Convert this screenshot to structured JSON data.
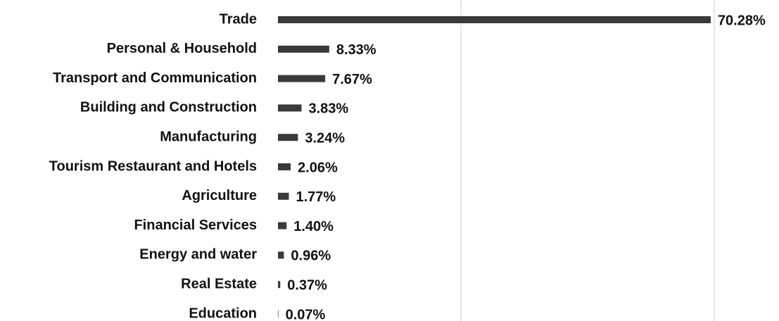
{
  "chart_data": {
    "type": "bar",
    "orientation": "horizontal",
    "categories": [
      "Trade",
      "Personal & Household",
      "Transport and Communication",
      "Building and Construction",
      "Manufacturing",
      "Tourism Restaurant and Hotels",
      "Agriculture",
      "Financial Services",
      "Energy and water",
      "Real Estate",
      "Education"
    ],
    "values": [
      70.28,
      8.33,
      7.67,
      3.83,
      3.24,
      2.06,
      1.77,
      1.4,
      0.96,
      0.37,
      0.07
    ],
    "value_labels": [
      "70.28%",
      "8.33%",
      "7.67%",
      "3.83%",
      "3.24%",
      "2.06%",
      "1.77%",
      "1.40%",
      "0.96%",
      "0.37%",
      "0.07%"
    ],
    "color": "#3a3a3a",
    "xlim": [
      0,
      80
    ]
  }
}
